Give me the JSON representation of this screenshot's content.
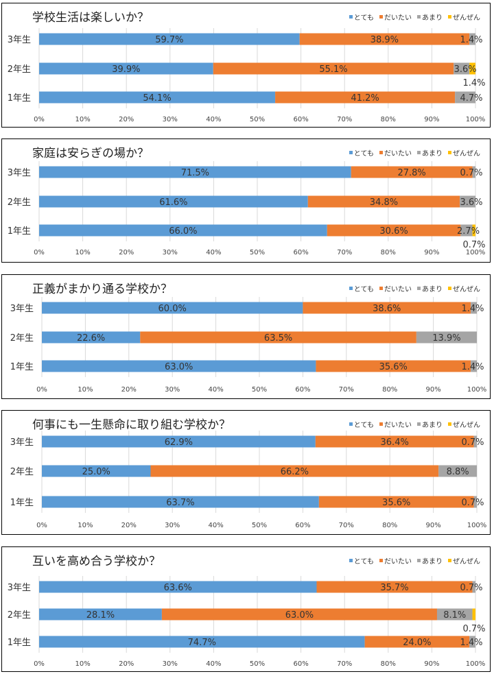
{
  "legend_labels": [
    "とても",
    "だいたい",
    "あまり",
    "ぜんぜん"
  ],
  "colors": [
    "#5b9bd5",
    "#ed7d31",
    "#a5a5a5",
    "#ffc000"
  ],
  "x_ticks": [
    "0%",
    "10%",
    "20%",
    "30%",
    "40%",
    "50%",
    "60%",
    "70%",
    "80%",
    "90%",
    "100%"
  ],
  "chart_data": [
    {
      "type": "bar",
      "title": "学校生活は楽しいか？",
      "categories": [
        "3年生",
        "2年生",
        "1年生"
      ],
      "series": [
        {
          "name": "とても",
          "values": [
            59.7,
            39.9,
            54.1
          ]
        },
        {
          "name": "だいたい",
          "values": [
            38.9,
            55.1,
            41.2
          ]
        },
        {
          "name": "あまり",
          "values": [
            1.4,
            3.6,
            4.7
          ]
        },
        {
          "name": "ぜんぜん",
          "values": [
            0,
            1.4,
            0
          ]
        }
      ],
      "labels": [
        [
          "59.7%",
          "38.9%",
          "1.4%",
          ""
        ],
        [
          "39.9%",
          "55.1%",
          "3.6%",
          "1.4%"
        ],
        [
          "54.1%",
          "41.2%",
          "4.7%",
          ""
        ]
      ],
      "xlim": [
        0,
        100
      ],
      "stacked": true,
      "orientation": "horizontal",
      "legend": "top-right"
    },
    {
      "type": "bar",
      "title": "家庭は安らぎの場か？",
      "categories": [
        "3年生",
        "2年生",
        "1年生"
      ],
      "series": [
        {
          "name": "とても",
          "values": [
            71.5,
            61.6,
            66.0
          ]
        },
        {
          "name": "だいたい",
          "values": [
            27.8,
            34.8,
            30.6
          ]
        },
        {
          "name": "あまり",
          "values": [
            0.7,
            3.6,
            2.7
          ]
        },
        {
          "name": "ぜんぜん",
          "values": [
            0,
            0,
            0.7
          ]
        }
      ],
      "labels": [
        [
          "71.5%",
          "27.8%",
          "0.7%",
          ""
        ],
        [
          "61.6%",
          "34.8%",
          "3.6%",
          ""
        ],
        [
          "66.0%",
          "30.6%",
          "2.7%",
          "0.7%"
        ]
      ],
      "xlim": [
        0,
        100
      ],
      "stacked": true,
      "orientation": "horizontal",
      "legend": "top-right"
    },
    {
      "type": "bar",
      "title": "正義がまかり通る学校か？",
      "categories": [
        "3年生",
        "2年生",
        "1年生"
      ],
      "series": [
        {
          "name": "とても",
          "values": [
            60.0,
            22.6,
            63.0
          ]
        },
        {
          "name": "だいたい",
          "values": [
            38.6,
            63.5,
            35.6
          ]
        },
        {
          "name": "あまり",
          "values": [
            1.4,
            13.9,
            1.4
          ]
        },
        {
          "name": "ぜんぜん",
          "values": [
            0,
            0,
            0
          ]
        }
      ],
      "labels": [
        [
          "60.0%",
          "38.6%",
          "1.4%",
          ""
        ],
        [
          "22.6%",
          "63.5%",
          "13.9%",
          ""
        ],
        [
          "63.0%",
          "35.6%",
          "1.4%",
          ""
        ]
      ],
      "xlim": [
        0,
        100
      ],
      "stacked": true,
      "orientation": "horizontal",
      "legend": "top-right"
    },
    {
      "type": "bar",
      "title": "何事にも一生懸命に取り組む学校か？",
      "categories": [
        "3年生",
        "2年生",
        "1年生"
      ],
      "series": [
        {
          "name": "とても",
          "values": [
            62.9,
            25.0,
            63.7
          ]
        },
        {
          "name": "だいたい",
          "values": [
            36.4,
            66.2,
            35.6
          ]
        },
        {
          "name": "あまり",
          "values": [
            0.7,
            8.8,
            0.7
          ]
        },
        {
          "name": "ぜんぜん",
          "values": [
            0,
            0,
            0
          ]
        }
      ],
      "labels": [
        [
          "62.9%",
          "36.4%",
          "0.7%",
          ""
        ],
        [
          "25.0%",
          "66.2%",
          "8.8%",
          ""
        ],
        [
          "63.7%",
          "35.6%",
          "0.7%",
          ""
        ]
      ],
      "xlim": [
        0,
        100
      ],
      "stacked": true,
      "orientation": "horizontal",
      "legend": "top-right"
    },
    {
      "type": "bar",
      "title": "互いを高め合う学校か？",
      "categories": [
        "3年生",
        "2年生",
        "1年生"
      ],
      "series": [
        {
          "name": "とても",
          "values": [
            63.6,
            28.1,
            74.7
          ]
        },
        {
          "name": "だいたい",
          "values": [
            35.7,
            63.0,
            24.0
          ]
        },
        {
          "name": "あまり",
          "values": [
            0.7,
            8.1,
            1.4
          ]
        },
        {
          "name": "ぜんぜん",
          "values": [
            0,
            0.7,
            0
          ]
        }
      ],
      "labels": [
        [
          "63.6%",
          "35.7%",
          "0.7%",
          ""
        ],
        [
          "28.1%",
          "63.0%",
          "8.1%",
          "0.7%"
        ],
        [
          "74.7%",
          "24.0%",
          "1.4%",
          ""
        ]
      ],
      "xlim": [
        0,
        100
      ],
      "stacked": true,
      "orientation": "horizontal",
      "legend": "top-right"
    }
  ]
}
